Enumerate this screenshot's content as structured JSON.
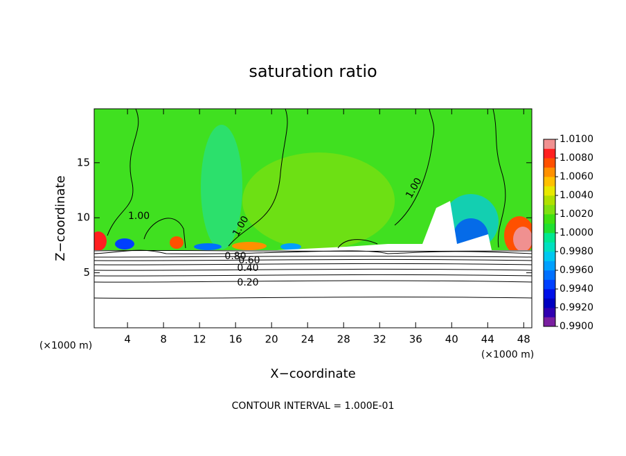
{
  "chart_data": {
    "type": "contour",
    "title": "saturation ratio",
    "x_label": "X−coordinate",
    "y_label": "Z−coordinate",
    "x_unit_label": "(×1000 m)",
    "x_unit_label_right": "(×1000 m)",
    "footnote": "CONTOUR INTERVAL = 1.000E-01",
    "xlim": [
      0.3,
      48.9
    ],
    "xticks": [
      4,
      8,
      12,
      16,
      20,
      24,
      28,
      32,
      36,
      40,
      44,
      48
    ],
    "ylim": [
      0,
      19.9
    ],
    "yticks": [
      5,
      10,
      15
    ],
    "contour_labels": [
      "1.00",
      "1.00",
      "1.00",
      "0.80",
      "0.60",
      "0.40",
      "0.20"
    ],
    "colorbar": {
      "ticks": [
        {
          "value": 0.99,
          "label": "0.9900"
        },
        {
          "value": 0.992,
          "label": "0.9920"
        },
        {
          "value": 0.994,
          "label": "0.9940"
        },
        {
          "value": 0.996,
          "label": "0.9960"
        },
        {
          "value": 0.998,
          "label": "0.9980"
        },
        {
          "value": 1.0,
          "label": "1.0000"
        },
        {
          "value": 1.002,
          "label": "1.0020"
        },
        {
          "value": 1.004,
          "label": "1.0040"
        },
        {
          "value": 1.006,
          "label": "1.0060"
        },
        {
          "value": 1.008,
          "label": "1.0080"
        },
        {
          "value": 1.01,
          "label": "1.0100"
        }
      ],
      "lim": [
        0.99,
        1.01
      ],
      "colors": [
        "#7a1fa0",
        "#3000b0",
        "#0000c0",
        "#0010e8",
        "#0040ff",
        "#0070ff",
        "#00a0ff",
        "#00c8f0",
        "#00e0c0",
        "#00e890",
        "#20e030",
        "#40e010",
        "#80e010",
        "#b0e000",
        "#e8e800",
        "#ffc000",
        "#ff9000",
        "#ff5000",
        "#ff2020",
        "#f09090"
      ]
    }
  }
}
